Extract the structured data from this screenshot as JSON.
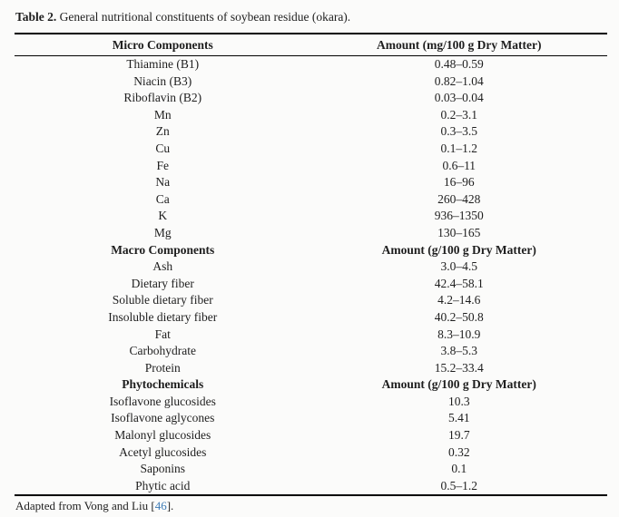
{
  "caption": {
    "label": "Table 2.",
    "text": "General nutritional constituents of soybean residue (okara)."
  },
  "table": {
    "sections": [
      {
        "header": {
          "component": "Micro Components",
          "amount": "Amount (mg/100 g Dry Matter)"
        },
        "rows": [
          {
            "component": "Thiamine (B1)",
            "amount": "0.48–0.59"
          },
          {
            "component": "Niacin (B3)",
            "amount": "0.82–1.04"
          },
          {
            "component": "Riboflavin (B2)",
            "amount": "0.03–0.04"
          },
          {
            "component": "Mn",
            "amount": "0.2–3.1"
          },
          {
            "component": "Zn",
            "amount": "0.3–3.5"
          },
          {
            "component": "Cu",
            "amount": "0.1–1.2"
          },
          {
            "component": "Fe",
            "amount": "0.6–11"
          },
          {
            "component": "Na",
            "amount": "16–96"
          },
          {
            "component": "Ca",
            "amount": "260–428"
          },
          {
            "component": "K",
            "amount": "936–1350"
          },
          {
            "component": "Mg",
            "amount": "130–165"
          }
        ]
      },
      {
        "header": {
          "component": "Macro Components",
          "amount": "Amount (g/100 g Dry Matter)"
        },
        "rows": [
          {
            "component": "Ash",
            "amount": "3.0–4.5"
          },
          {
            "component": "Dietary fiber",
            "amount": "42.4–58.1"
          },
          {
            "component": "Soluble dietary fiber",
            "amount": "4.2–14.6"
          },
          {
            "component": "Insoluble dietary fiber",
            "amount": "40.2–50.8"
          },
          {
            "component": "Fat",
            "amount": "8.3–10.9"
          },
          {
            "component": "Carbohydrate",
            "amount": "3.8–5.3"
          },
          {
            "component": "Protein",
            "amount": "15.2–33.4"
          }
        ]
      },
      {
        "header": {
          "component": "Phytochemicals",
          "amount": "Amount (g/100 g Dry Matter)"
        },
        "rows": [
          {
            "component": "Isoflavone glucosides",
            "amount": "10.3"
          },
          {
            "component": "Isoflavone aglycones",
            "amount": "5.41"
          },
          {
            "component": "Malonyl glucosides",
            "amount": "19.7"
          },
          {
            "component": "Acetyl glucosides",
            "amount": "0.32"
          },
          {
            "component": "Saponins",
            "amount": "0.1"
          },
          {
            "component": "Phytic acid",
            "amount": "0.5–1.2"
          }
        ]
      }
    ]
  },
  "footnote": {
    "text_before": "Adapted from Vong and Liu [",
    "reference": "46",
    "text_after": "]."
  },
  "colors": {
    "reference_link": "#3f7cb6",
    "text": "#1e1e1e",
    "rule": "#000000",
    "background": "#fbfbfa"
  }
}
